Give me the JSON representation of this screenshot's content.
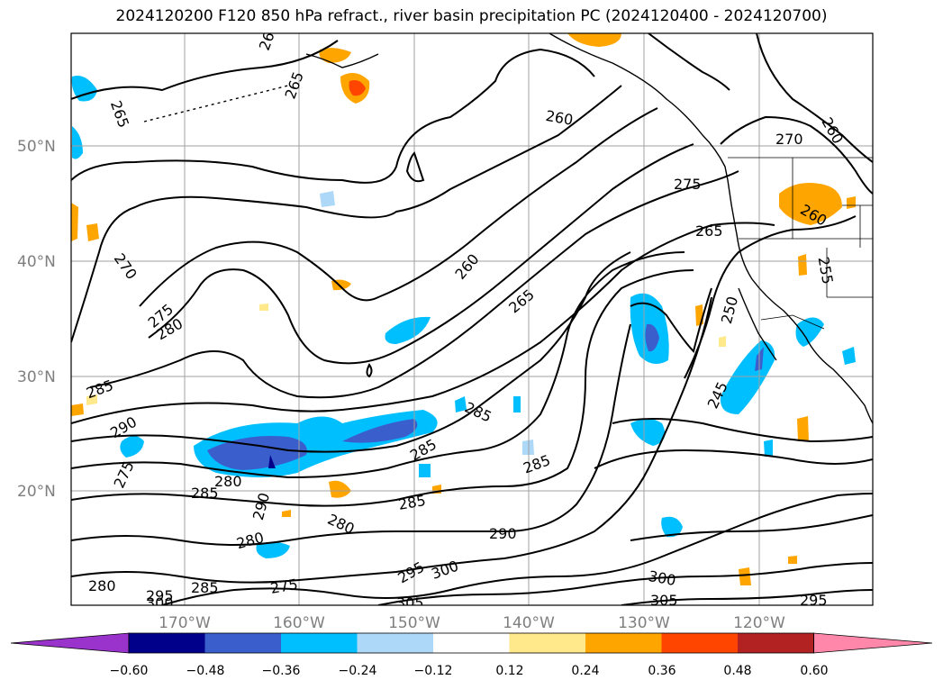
{
  "title": "2024120200 F120 850 hPa refract., river basin precipitation PC (2024120400 - 2024120700)",
  "map": {
    "lat_labels": [
      "50°N",
      "40°N",
      "30°N",
      "20°N"
    ],
    "lon_labels": [
      "170°W",
      "160°W",
      "150°W",
      "140°W",
      "130°W",
      "120°W"
    ],
    "contour_labels": [
      "260",
      "265",
      "270",
      "275",
      "280",
      "285",
      "290",
      "295",
      "300",
      "305",
      "250",
      "245",
      "255"
    ]
  },
  "colorbar": {
    "tick_labels": [
      "−0.60",
      "−0.48",
      "−0.36",
      "−0.24",
      "−0.12",
      "0.12",
      "0.24",
      "0.36",
      "0.48",
      "0.60"
    ],
    "colors": [
      "#9933cc",
      "#00008b",
      "#3a5fcd",
      "#00bfff",
      "#add8f7",
      "#ffffff",
      "#ffe98a",
      "#ffa500",
      "#ff4500",
      "#b22222",
      "#ff88aa"
    ]
  }
}
